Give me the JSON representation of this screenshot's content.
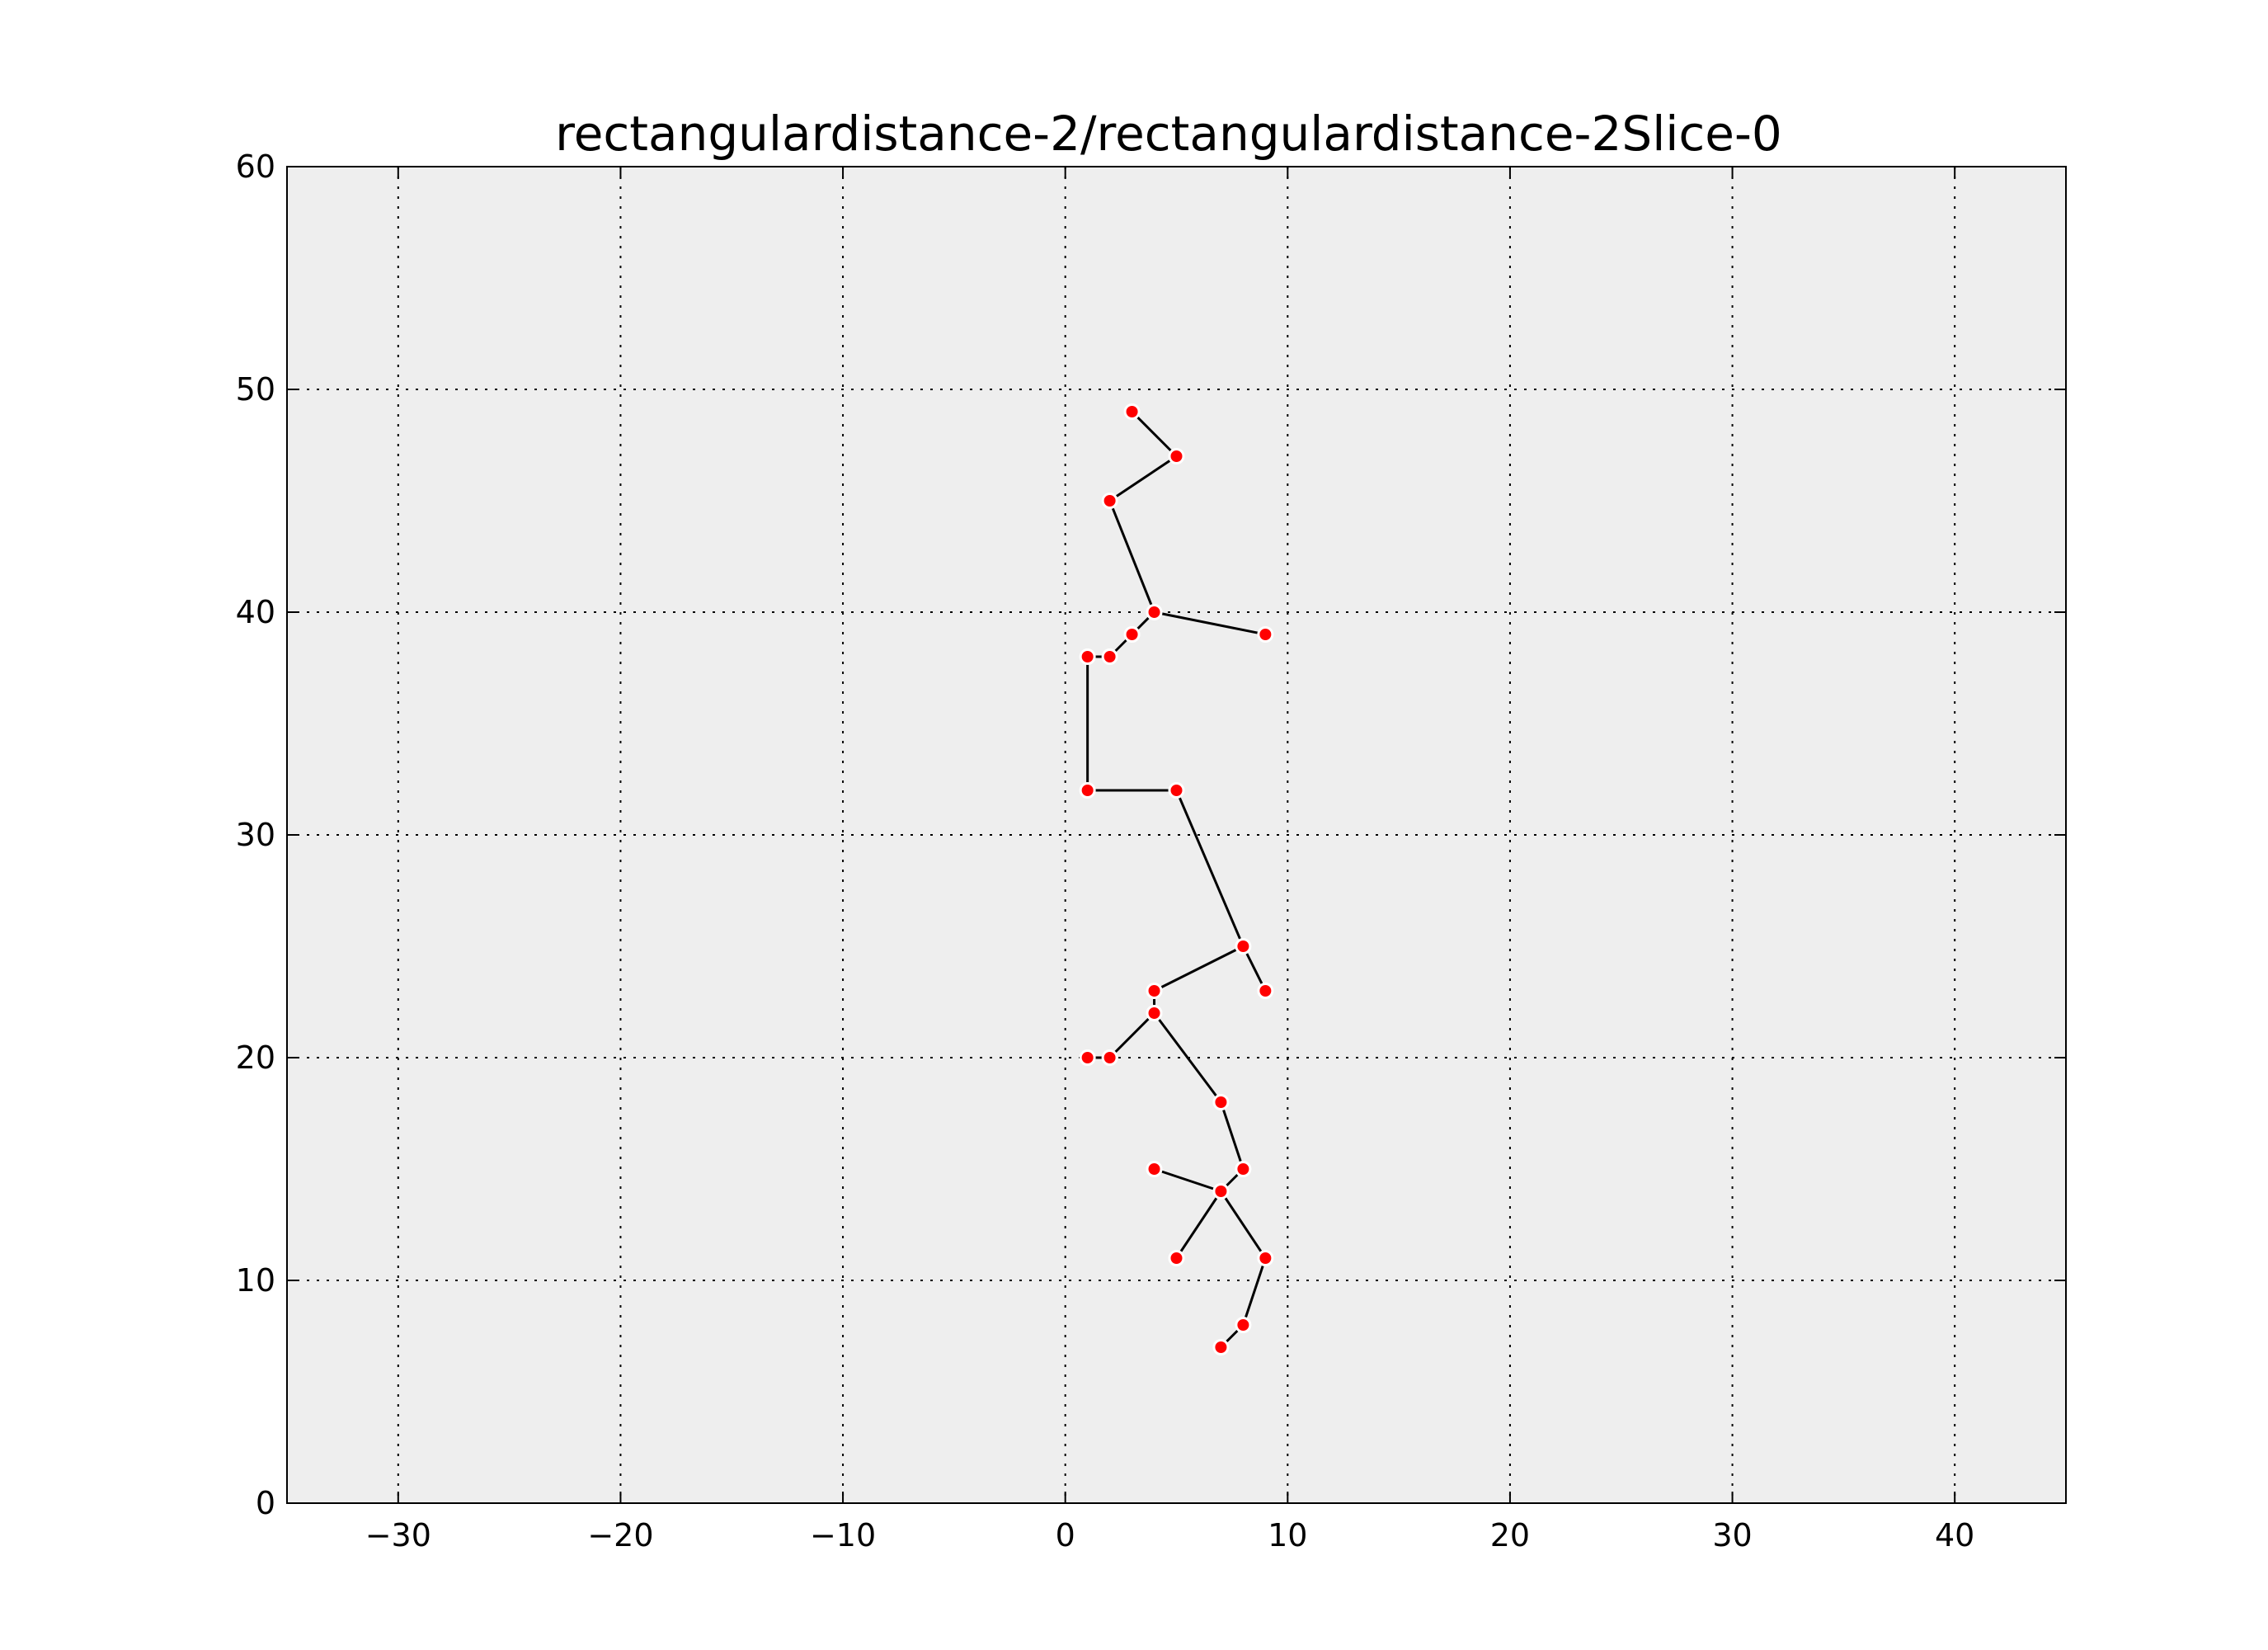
{
  "chart_data": {
    "type": "scatter",
    "title": "rectangulardistance-2/rectangulardistance-2Slice-0",
    "xlabel": "",
    "ylabel": "",
    "xlim": [
      -35,
      45
    ],
    "ylim": [
      0,
      60
    ],
    "xticks": [
      -30,
      -20,
      -10,
      0,
      10,
      20,
      30,
      40
    ],
    "yticks": [
      0,
      10,
      20,
      30,
      40,
      50,
      60
    ],
    "grid": true,
    "colors": {
      "background": "#eeeeee",
      "point": "#ff0000",
      "point_edge": "#ffffff",
      "line": "#000000"
    },
    "points": [
      [
        3,
        49
      ],
      [
        5,
        47
      ],
      [
        2,
        45
      ],
      [
        4,
        40
      ],
      [
        9,
        39
      ],
      [
        3,
        39
      ],
      [
        2,
        38
      ],
      [
        1,
        38
      ],
      [
        1,
        32
      ],
      [
        5,
        32
      ],
      [
        8,
        25
      ],
      [
        9,
        23
      ],
      [
        4,
        23
      ],
      [
        4,
        22
      ],
      [
        2,
        20
      ],
      [
        1,
        20
      ],
      [
        7,
        18
      ],
      [
        8,
        15
      ],
      [
        7,
        14
      ],
      [
        4,
        15
      ],
      [
        5,
        11
      ],
      [
        9,
        11
      ],
      [
        8,
        8
      ],
      [
        7,
        7
      ]
    ],
    "edges": [
      [
        [
          3,
          49
        ],
        [
          5,
          47
        ]
      ],
      [
        [
          5,
          47
        ],
        [
          2,
          45
        ]
      ],
      [
        [
          2,
          45
        ],
        [
          4,
          40
        ]
      ],
      [
        [
          4,
          40
        ],
        [
          9,
          39
        ]
      ],
      [
        [
          4,
          40
        ],
        [
          3,
          39
        ]
      ],
      [
        [
          3,
          39
        ],
        [
          2,
          38
        ]
      ],
      [
        [
          2,
          38
        ],
        [
          1,
          38
        ]
      ],
      [
        [
          1,
          38
        ],
        [
          1,
          32
        ]
      ],
      [
        [
          1,
          32
        ],
        [
          5,
          32
        ]
      ],
      [
        [
          5,
          32
        ],
        [
          8,
          25
        ]
      ],
      [
        [
          8,
          25
        ],
        [
          9,
          23
        ]
      ],
      [
        [
          8,
          25
        ],
        [
          4,
          23
        ]
      ],
      [
        [
          4,
          23
        ],
        [
          4,
          22
        ]
      ],
      [
        [
          4,
          22
        ],
        [
          2,
          20
        ]
      ],
      [
        [
          2,
          20
        ],
        [
          1,
          20
        ]
      ],
      [
        [
          4,
          22
        ],
        [
          7,
          18
        ]
      ],
      [
        [
          7,
          18
        ],
        [
          8,
          15
        ]
      ],
      [
        [
          8,
          15
        ],
        [
          7,
          14
        ]
      ],
      [
        [
          7,
          14
        ],
        [
          4,
          15
        ]
      ],
      [
        [
          7,
          14
        ],
        [
          5,
          11
        ]
      ],
      [
        [
          7,
          14
        ],
        [
          9,
          11
        ]
      ],
      [
        [
          9,
          11
        ],
        [
          8,
          8
        ]
      ],
      [
        [
          8,
          8
        ],
        [
          7,
          7
        ]
      ]
    ]
  }
}
